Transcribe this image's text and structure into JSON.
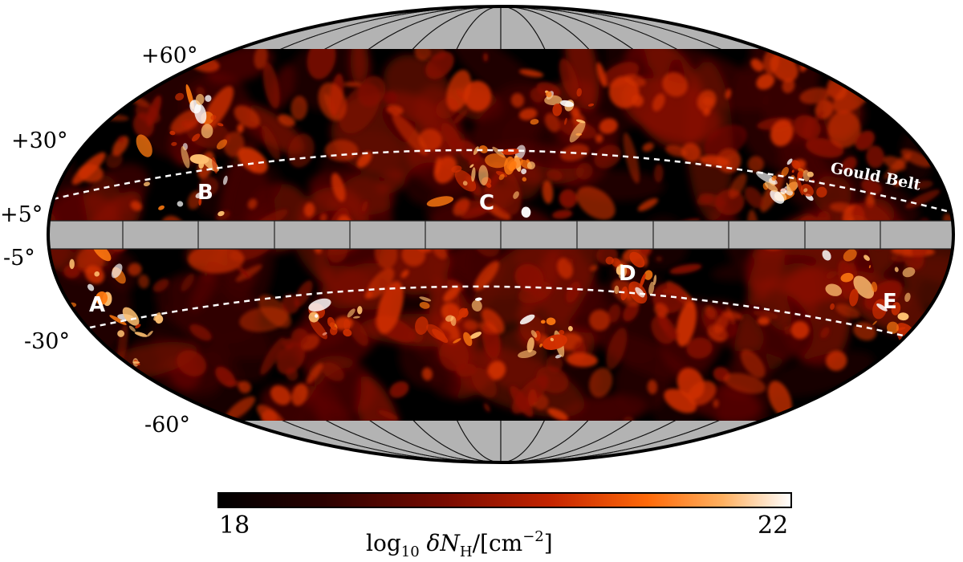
{
  "map": {
    "projection": "Mollweide",
    "masked_band": "|b| < 5°",
    "masked_caps": "|b| > 60°",
    "colormap": [
      "#000000",
      "#3a0200",
      "#8a0e00",
      "#d23000",
      "#ff7a10",
      "#ffc070",
      "#ffffff"
    ]
  },
  "lat_labels": {
    "p60": "+60°",
    "p30": "+30°",
    "p5": "+5°",
    "m5": "-5°",
    "m30": "-30°",
    "m60": "-60°"
  },
  "regions": {
    "A": "A",
    "B": "B",
    "C": "C",
    "D": "D",
    "E": "E"
  },
  "gould_belt": {
    "label": "Gould Belt"
  },
  "colorbar": {
    "min": 18,
    "max": 22,
    "min_label": "18",
    "max_label": "22",
    "title_prefix": "log",
    "title_sub": "10",
    "title_body": " δN",
    "title_sub2": "H",
    "title_units": "/[cm",
    "title_exp": "−2",
    "title_close": "]"
  }
}
